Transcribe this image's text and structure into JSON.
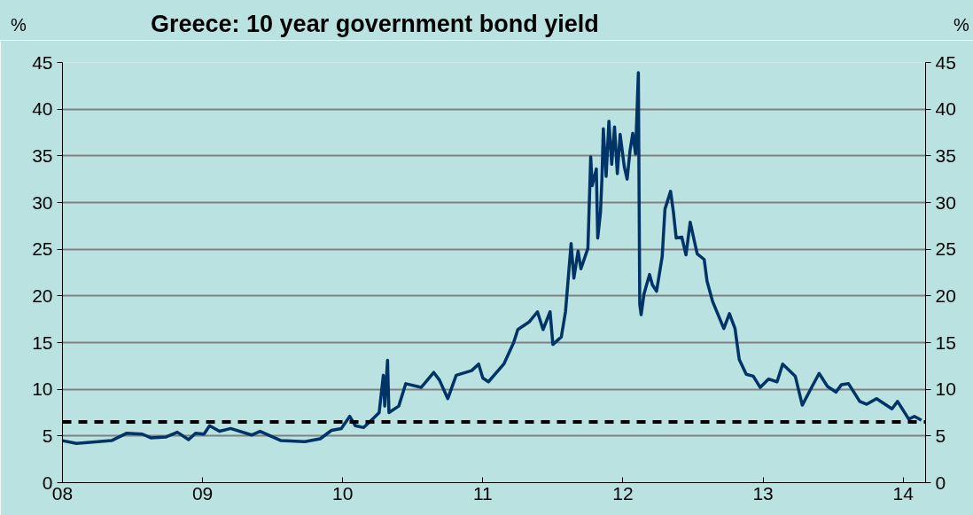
{
  "chart_data": {
    "type": "line",
    "title": "Greece: 10 year government bond yield",
    "ylabel": "%",
    "y2label": "%",
    "x": [
      2008.0,
      2008.1,
      2008.35,
      2008.46,
      2008.57,
      2008.63,
      2008.74,
      2008.82,
      2008.9,
      2008.95,
      2009.01,
      2009.05,
      2009.12,
      2009.2,
      2009.35,
      2009.41,
      2009.56,
      2009.73,
      2009.84,
      2009.92,
      2009.99,
      2010.05,
      2010.09,
      2010.15,
      2010.22,
      2010.26,
      2010.29,
      2010.3,
      2010.32,
      2010.33,
      2010.4,
      2010.45,
      2010.56,
      2010.65,
      2010.69,
      2010.75,
      2010.81,
      2010.92,
      2010.97,
      2011.0,
      2011.04,
      2011.15,
      2011.22,
      2011.25,
      2011.33,
      2011.39,
      2011.43,
      2011.48,
      2011.5,
      2011.56,
      2011.59,
      2011.63,
      2011.65,
      2011.68,
      2011.7,
      2011.75,
      2011.77,
      2011.78,
      2011.81,
      2011.82,
      2011.84,
      2011.85,
      2011.86,
      2011.88,
      2011.9,
      2011.92,
      2011.94,
      2011.96,
      2011.98,
      2012.01,
      2012.03,
      2012.05,
      2012.07,
      2012.09,
      2012.11,
      2012.12,
      2012.13,
      2012.15,
      2012.19,
      2012.21,
      2012.24,
      2012.28,
      2012.3,
      2012.34,
      2012.36,
      2012.38,
      2012.42,
      2012.45,
      2012.48,
      2012.53,
      2012.58,
      2012.6,
      2012.64,
      2012.72,
      2012.76,
      2012.8,
      2012.83,
      2012.88,
      2012.93,
      2012.98,
      2013.04,
      2013.1,
      2013.14,
      2013.23,
      2013.28,
      2013.35,
      2013.4,
      2013.46,
      2013.52,
      2013.56,
      2013.61,
      2013.69,
      2013.74,
      2013.81,
      2013.92,
      2013.96,
      2014.04,
      2014.08,
      2014.13
    ],
    "series": [
      {
        "color": "#003366",
        "values": [
          4.5,
          4.2,
          4.5,
          5.3,
          5.2,
          4.8,
          4.9,
          5.4,
          4.6,
          5.3,
          5.2,
          6.1,
          5.5,
          5.8,
          5.1,
          5.5,
          4.5,
          4.4,
          4.7,
          5.6,
          5.8,
          7.1,
          6.1,
          5.9,
          6.9,
          7.5,
          11.5,
          8.2,
          13.1,
          7.5,
          8.2,
          10.6,
          10.2,
          11.8,
          11.0,
          9.0,
          11.5,
          12.0,
          12.7,
          11.2,
          10.8,
          12.7,
          15.0,
          16.4,
          17.2,
          18.3,
          16.4,
          18.3,
          14.8,
          15.6,
          18.3,
          25.6,
          21.9,
          24.8,
          22.9,
          25.1,
          34.9,
          31.8,
          33.6,
          26.2,
          29.0,
          32.5,
          37.9,
          32.8,
          38.7,
          34.1,
          38.1,
          33.1,
          37.3,
          33.8,
          32.5,
          35.5,
          37.4,
          35.2,
          43.9,
          19.1,
          18.0,
          20.2,
          22.3,
          21.2,
          20.5,
          24.2,
          29.3,
          31.2,
          29.0,
          26.2,
          26.3,
          24.4,
          27.9,
          24.5,
          23.9,
          21.6,
          19.4,
          16.5,
          18.1,
          16.5,
          13.2,
          11.6,
          11.4,
          10.2,
          11.1,
          10.8,
          12.7,
          11.4,
          8.3,
          10.3,
          11.7,
          10.3,
          9.7,
          10.5,
          10.6,
          8.7,
          8.4,
          9.0,
          7.9,
          8.7,
          6.8,
          7.1,
          6.7
        ]
      }
    ],
    "xlim": [
      2008,
      2014.16
    ],
    "xticks": [
      {
        "value": 2008,
        "label": "08"
      },
      {
        "value": 2009,
        "label": "09"
      },
      {
        "value": 2010,
        "label": "10"
      },
      {
        "value": 2011,
        "label": "11"
      },
      {
        "value": 2012,
        "label": "12"
      },
      {
        "value": 2013,
        "label": "13"
      },
      {
        "value": 2014,
        "label": "14"
      }
    ],
    "ylim": [
      0,
      45
    ],
    "yticks": [
      0,
      5,
      10,
      15,
      20,
      25,
      30,
      35,
      40,
      45
    ],
    "y2lim": [
      0,
      45
    ],
    "y2ticks": [
      0,
      5,
      10,
      15,
      20,
      25,
      30,
      35,
      40,
      45
    ],
    "ref_lines": [
      {
        "axis": "y",
        "value": 6.5,
        "color": "#000000",
        "line_style": "dashed"
      }
    ],
    "grid": "y",
    "marker": "none",
    "line_style": "solid"
  }
}
